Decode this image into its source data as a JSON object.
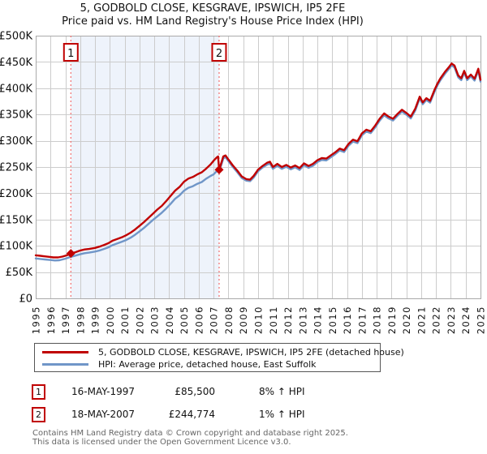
{
  "title": "5, GODBOLD CLOSE, KESGRAVE, IPSWICH, IP5 2FE",
  "subtitle": "Price paid vs. HM Land Registry's House Price Index (HPI)",
  "colors": {
    "property_line": "#c00000",
    "hpi_line": "#7096c8",
    "event_line": "#f26e6e",
    "shaded_band": "#eef3fb",
    "grid": "#cccccc",
    "plot_border": "#aaaaaa",
    "badge_border": "#c00000"
  },
  "chart_data": {
    "type": "line",
    "title": "5, GODBOLD CLOSE, KESGRAVE, IPSWICH, IP5 2FE",
    "subtitle": "Price paid vs. HM Land Registry's House Price Index (HPI)",
    "grid": true,
    "x_axis": {
      "min": 1995,
      "max": 2025,
      "tick_labels": [
        "1995",
        "1996",
        "1997",
        "1998",
        "1999",
        "2000",
        "2001",
        "2002",
        "2003",
        "2004",
        "2005",
        "2006",
        "2007",
        "2008",
        "2009",
        "2010",
        "2011",
        "2012",
        "2013",
        "2014",
        "2015",
        "2016",
        "2017",
        "2018",
        "2019",
        "2020",
        "2021",
        "2022",
        "2023",
        "2024",
        "2025"
      ]
    },
    "y_axis": {
      "min": 0,
      "max": 500,
      "unit": "GBP thousands",
      "tick_values": [
        0,
        50,
        100,
        150,
        200,
        250,
        300,
        350,
        400,
        450,
        500
      ],
      "tick_labels": [
        "£0",
        "£50K",
        "£100K",
        "£150K",
        "£200K",
        "£250K",
        "£300K",
        "£350K",
        "£400K",
        "£450K",
        "£500K"
      ]
    },
    "series": [
      {
        "name": "HPI: Average price, detached house, East Suffolk",
        "color": "#7096c8",
        "points_gbp_k": [
          [
            1995.0,
            76
          ],
          [
            1995.3,
            75
          ],
          [
            1995.6,
            74
          ],
          [
            1996.0,
            73
          ],
          [
            1996.3,
            72
          ],
          [
            1996.6,
            72.5
          ],
          [
            1997.0,
            75.5
          ],
          [
            1997.37,
            79
          ],
          [
            1997.7,
            81.5
          ],
          [
            1998.0,
            84
          ],
          [
            1998.3,
            86
          ],
          [
            1998.6,
            87
          ],
          [
            1999.0,
            89
          ],
          [
            1999.3,
            91
          ],
          [
            1999.6,
            94
          ],
          [
            1999.9,
            97
          ],
          [
            2000.2,
            101.5
          ],
          [
            2000.5,
            104.5
          ],
          [
            2000.8,
            107.5
          ],
          [
            2001.1,
            111
          ],
          [
            2001.4,
            115.5
          ],
          [
            2001.7,
            121
          ],
          [
            2002.0,
            127.5
          ],
          [
            2002.3,
            134
          ],
          [
            2002.6,
            141.5
          ],
          [
            2002.9,
            149
          ],
          [
            2003.2,
            156
          ],
          [
            2003.5,
            163
          ],
          [
            2003.8,
            171
          ],
          [
            2004.1,
            180
          ],
          [
            2004.4,
            189.5
          ],
          [
            2004.7,
            196
          ],
          [
            2005.0,
            205
          ],
          [
            2005.3,
            210.5
          ],
          [
            2005.6,
            213.5
          ],
          [
            2005.9,
            218
          ],
          [
            2006.2,
            221.5
          ],
          [
            2006.5,
            228
          ],
          [
            2006.8,
            233
          ],
          [
            2007.0,
            236
          ],
          [
            2007.2,
            242
          ],
          [
            2007.37,
            246
          ],
          [
            2007.5,
            252
          ],
          [
            2007.65,
            266
          ],
          [
            2007.8,
            269
          ],
          [
            2008.0,
            261
          ],
          [
            2008.3,
            250
          ],
          [
            2008.6,
            240
          ],
          [
            2008.9,
            229
          ],
          [
            2009.2,
            224
          ],
          [
            2009.45,
            223
          ],
          [
            2009.7,
            230
          ],
          [
            2010.0,
            242
          ],
          [
            2010.3,
            249
          ],
          [
            2010.6,
            254.5
          ],
          [
            2010.8,
            256.5
          ],
          [
            2011.0,
            246.5
          ],
          [
            2011.3,
            252.5
          ],
          [
            2011.6,
            246.5
          ],
          [
            2011.9,
            250.5
          ],
          [
            2012.2,
            245.5
          ],
          [
            2012.5,
            249.5
          ],
          [
            2012.8,
            244.5
          ],
          [
            2013.1,
            253.5
          ],
          [
            2013.4,
            248.5
          ],
          [
            2013.7,
            252.5
          ],
          [
            2014.0,
            259.5
          ],
          [
            2014.3,
            263.5
          ],
          [
            2014.6,
            262.5
          ],
          [
            2014.9,
            268.5
          ],
          [
            2015.2,
            274.5
          ],
          [
            2015.5,
            281.5
          ],
          [
            2015.8,
            278.5
          ],
          [
            2016.1,
            290.5
          ],
          [
            2016.4,
            298.5
          ],
          [
            2016.7,
            295.5
          ],
          [
            2017.0,
            310.5
          ],
          [
            2017.3,
            317.5
          ],
          [
            2017.6,
            314.5
          ],
          [
            2017.9,
            325.5
          ],
          [
            2018.2,
            338.5
          ],
          [
            2018.5,
            348.5
          ],
          [
            2018.8,
            342.5
          ],
          [
            2019.1,
            338.5
          ],
          [
            2019.4,
            347.5
          ],
          [
            2019.7,
            355.5
          ],
          [
            2020.0,
            349.5
          ],
          [
            2020.3,
            342.5
          ],
          [
            2020.6,
            357.5
          ],
          [
            2020.9,
            380.5
          ],
          [
            2021.1,
            369.5
          ],
          [
            2021.35,
            377.5
          ],
          [
            2021.6,
            372.5
          ],
          [
            2021.9,
            393.5
          ],
          [
            2022.1,
            405.5
          ],
          [
            2022.3,
            415.5
          ],
          [
            2022.6,
            427.5
          ],
          [
            2022.9,
            437.5
          ],
          [
            2023.05,
            443.5
          ],
          [
            2023.25,
            439.5
          ],
          [
            2023.5,
            420.5
          ],
          [
            2023.7,
            415.5
          ],
          [
            2023.9,
            429.5
          ],
          [
            2024.1,
            415.5
          ],
          [
            2024.35,
            422.5
          ],
          [
            2024.6,
            414.5
          ],
          [
            2024.85,
            433.5
          ],
          [
            2025.0,
            412.5
          ]
        ]
      },
      {
        "name": "5, GODBOLD CLOSE, KESGRAVE, IPSWICH, IP5 2FE (detached house)",
        "color": "#c00000",
        "points_gbp_k": [
          [
            1995.0,
            82
          ],
          [
            1995.3,
            81
          ],
          [
            1995.6,
            80
          ],
          [
            1995.9,
            79
          ],
          [
            1996.2,
            78
          ],
          [
            1996.5,
            78
          ],
          [
            1996.8,
            79.5
          ],
          [
            1997.1,
            82
          ],
          [
            1997.37,
            85.5
          ],
          [
            1997.7,
            88
          ],
          [
            1998.0,
            91
          ],
          [
            1998.3,
            93
          ],
          [
            1998.6,
            94
          ],
          [
            1999.0,
            96
          ],
          [
            1999.3,
            98.5
          ],
          [
            1999.6,
            101.5
          ],
          [
            1999.9,
            105
          ],
          [
            2000.2,
            110
          ],
          [
            2000.5,
            113
          ],
          [
            2000.8,
            116
          ],
          [
            2001.1,
            120
          ],
          [
            2001.4,
            125
          ],
          [
            2001.7,
            131
          ],
          [
            2002.0,
            138
          ],
          [
            2002.3,
            145
          ],
          [
            2002.6,
            153
          ],
          [
            2002.9,
            161
          ],
          [
            2003.2,
            169
          ],
          [
            2003.5,
            176
          ],
          [
            2003.8,
            185
          ],
          [
            2004.1,
            195
          ],
          [
            2004.4,
            205
          ],
          [
            2004.7,
            212
          ],
          [
            2005.0,
            222
          ],
          [
            2005.3,
            228
          ],
          [
            2005.6,
            231
          ],
          [
            2005.9,
            236
          ],
          [
            2006.2,
            240
          ],
          [
            2006.5,
            247
          ],
          [
            2006.8,
            255
          ],
          [
            2007.0,
            262
          ],
          [
            2007.2,
            268
          ],
          [
            2007.3,
            270
          ],
          [
            2007.37,
            244.774
          ],
          [
            2007.5,
            256
          ],
          [
            2007.65,
            270
          ],
          [
            2007.8,
            272
          ],
          [
            2008.0,
            264
          ],
          [
            2008.3,
            253
          ],
          [
            2008.6,
            243
          ],
          [
            2008.9,
            232
          ],
          [
            2009.2,
            227
          ],
          [
            2009.45,
            226
          ],
          [
            2009.7,
            233
          ],
          [
            2010.0,
            245
          ],
          [
            2010.3,
            252
          ],
          [
            2010.6,
            258
          ],
          [
            2010.8,
            260
          ],
          [
            2011.0,
            250
          ],
          [
            2011.3,
            256
          ],
          [
            2011.6,
            250
          ],
          [
            2011.9,
            254
          ],
          [
            2012.2,
            249
          ],
          [
            2012.5,
            253
          ],
          [
            2012.8,
            248
          ],
          [
            2013.1,
            257
          ],
          [
            2013.4,
            252
          ],
          [
            2013.7,
            256
          ],
          [
            2014.0,
            263
          ],
          [
            2014.3,
            267
          ],
          [
            2014.6,
            266
          ],
          [
            2014.9,
            272
          ],
          [
            2015.2,
            278
          ],
          [
            2015.5,
            285
          ],
          [
            2015.8,
            282
          ],
          [
            2016.1,
            294
          ],
          [
            2016.4,
            302
          ],
          [
            2016.7,
            299
          ],
          [
            2017.0,
            314
          ],
          [
            2017.3,
            321
          ],
          [
            2017.6,
            318
          ],
          [
            2017.9,
            329
          ],
          [
            2018.2,
            342
          ],
          [
            2018.5,
            352
          ],
          [
            2018.8,
            346
          ],
          [
            2019.1,
            342
          ],
          [
            2019.4,
            351
          ],
          [
            2019.7,
            359
          ],
          [
            2020.0,
            353
          ],
          [
            2020.3,
            346
          ],
          [
            2020.6,
            361
          ],
          [
            2020.9,
            384
          ],
          [
            2021.1,
            373
          ],
          [
            2021.35,
            381
          ],
          [
            2021.6,
            376
          ],
          [
            2021.9,
            397
          ],
          [
            2022.1,
            409
          ],
          [
            2022.3,
            419
          ],
          [
            2022.6,
            431
          ],
          [
            2022.9,
            441
          ],
          [
            2023.05,
            447
          ],
          [
            2023.25,
            443
          ],
          [
            2023.5,
            424
          ],
          [
            2023.7,
            419
          ],
          [
            2023.9,
            433
          ],
          [
            2024.1,
            419
          ],
          [
            2024.35,
            426
          ],
          [
            2024.6,
            418
          ],
          [
            2024.85,
            437
          ],
          [
            2025.0,
            416
          ]
        ]
      }
    ],
    "events": [
      {
        "num": "1",
        "year": 1997.37,
        "value_gbp_k": 85.5
      },
      {
        "num": "2",
        "year": 2007.37,
        "value_gbp_k": 244.774
      }
    ],
    "legend_position": "bottom"
  },
  "annotations": [
    {
      "num": "1",
      "date": "16-MAY-1997",
      "price": "£85,500",
      "delta": "8% ↑ HPI"
    },
    {
      "num": "2",
      "date": "18-MAY-2007",
      "price": "£244,774",
      "delta": "1% ↑ HPI"
    }
  ],
  "footer": {
    "line1": "Contains HM Land Registry data © Crown copyright and database right 2025.",
    "line2": "This data is licensed under the Open Government Licence v3.0."
  }
}
